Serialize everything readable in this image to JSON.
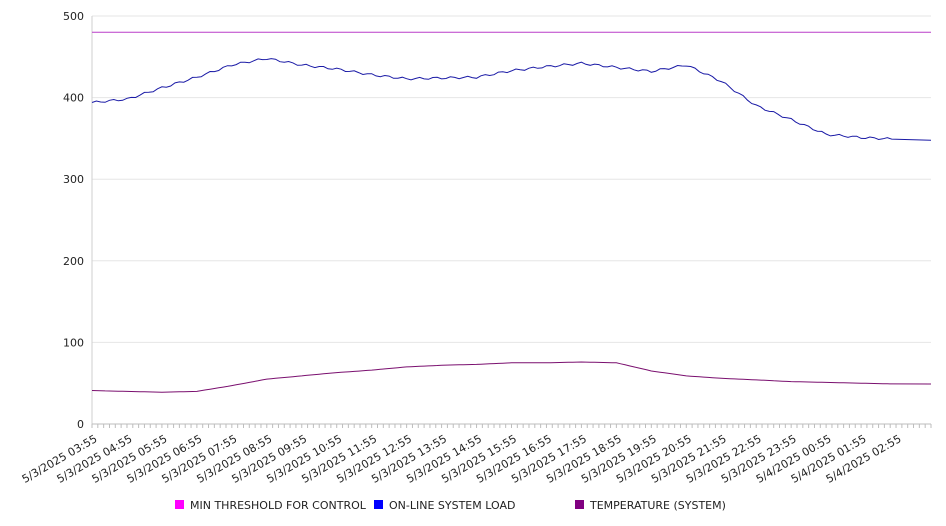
{
  "chart_data": {
    "type": "line",
    "title": "",
    "xlabel": "",
    "ylabel": "",
    "ylim": [
      0,
      500
    ],
    "yticks": [
      0,
      100,
      200,
      300,
      400,
      500
    ],
    "grid": "horizontal",
    "legend_position": "bottom",
    "x_ticks": [
      "5/3/2025 03:55",
      "5/3/2025 04:55",
      "5/3/2025 05:55",
      "5/3/2025 06:55",
      "5/3/2025 07:55",
      "5/3/2025 08:55",
      "5/3/2025 09:55",
      "5/3/2025 10:55",
      "5/3/2025 11:55",
      "5/3/2025 12:55",
      "5/3/2025 13:55",
      "5/3/2025 14:55",
      "5/3/2025 15:55",
      "5/3/2025 16:55",
      "5/3/2025 17:55",
      "5/3/2025 18:55",
      "5/3/2025 19:55",
      "5/3/2025 20:55",
      "5/3/2025 21:55",
      "5/3/2025 22:55",
      "5/3/2025 23:55",
      "5/4/2025 00:55",
      "5/4/2025 01:55",
      "5/4/2025 02:55"
    ],
    "series": [
      {
        "name": "MIN THRESHOLD FOR CONTROL",
        "color": "#ba3fc9",
        "legend_color": "#ff00ff",
        "values": [
          480,
          480,
          480,
          480,
          480,
          480,
          480,
          480,
          480,
          480,
          480,
          480,
          480,
          480,
          480,
          480,
          480,
          480,
          480,
          480,
          480,
          480,
          480,
          480
        ]
      },
      {
        "name": "ON-LINE SYSTEM LOAD",
        "color": "#1a1aa6",
        "legend_color": "#0000ff",
        "values": [
          394,
          398,
          412,
          425,
          440,
          448,
          440,
          435,
          428,
          423,
          424,
          425,
          433,
          438,
          442,
          437,
          432,
          440,
          420,
          390,
          373,
          355,
          351,
          349
        ]
      },
      {
        "name": "TEMPERATURE (SYSTEM)",
        "color": "#7a0f6f",
        "legend_color": "#800080",
        "values": [
          41,
          40,
          39,
          40,
          47,
          55,
          59,
          63,
          66,
          70,
          72,
          73,
          75,
          75,
          76,
          75,
          65,
          59,
          56,
          54,
          52,
          51,
          50,
          49
        ]
      }
    ]
  }
}
